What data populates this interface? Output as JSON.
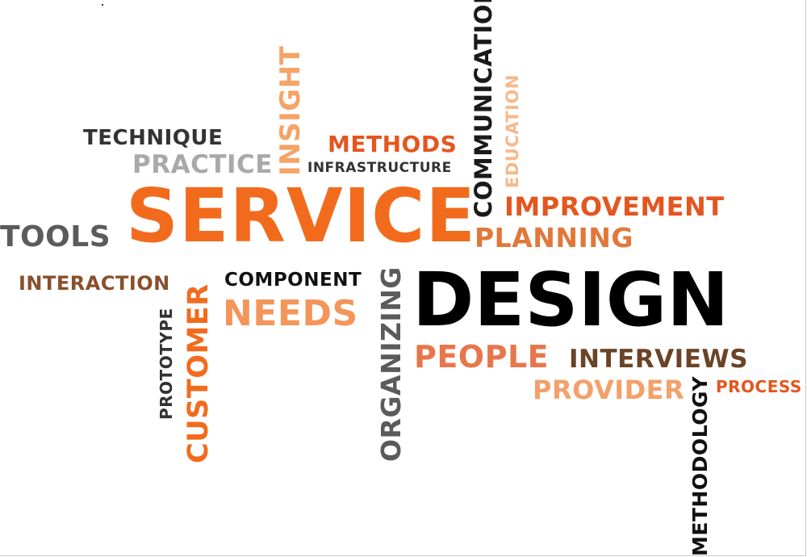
{
  "words": {
    "service": "SERVICE",
    "design": "DESIGN",
    "tools": "TOOLS",
    "technique": "TECHNIQUE",
    "practice": "PRACTICE",
    "insight": "INSIGHT",
    "methods": "METHODS",
    "infrastructure": "INFRASTRUCTURE",
    "communication": "COMMUNICATION",
    "education": "EDUCATION",
    "improvement": "IMPROVEMENT",
    "planning": "PLANNING",
    "interaction": "INTERACTION",
    "prototype": "PROTOTYPE",
    "customer": "CUSTOMER",
    "component": "COMPONENT",
    "needs": "NEEDS",
    "organizing": "ORGANIZING",
    "people": "PEOPLE",
    "interviews": "INTERVIEWS",
    "provider": "PROVIDER",
    "process": "PROCESS",
    "methodology": "METHODOLOGY"
  },
  "colors": {
    "orange": "#f26b1d",
    "dark_orange": "#e45a1c",
    "light_orange": "#f4a06a",
    "pale_orange": "#f6b98b",
    "brown": "#8a4f2a",
    "dark": "#2b2b2b",
    "gray": "#5b5b5b",
    "light_gray": "#a9a9a9",
    "black": "#000000"
  }
}
